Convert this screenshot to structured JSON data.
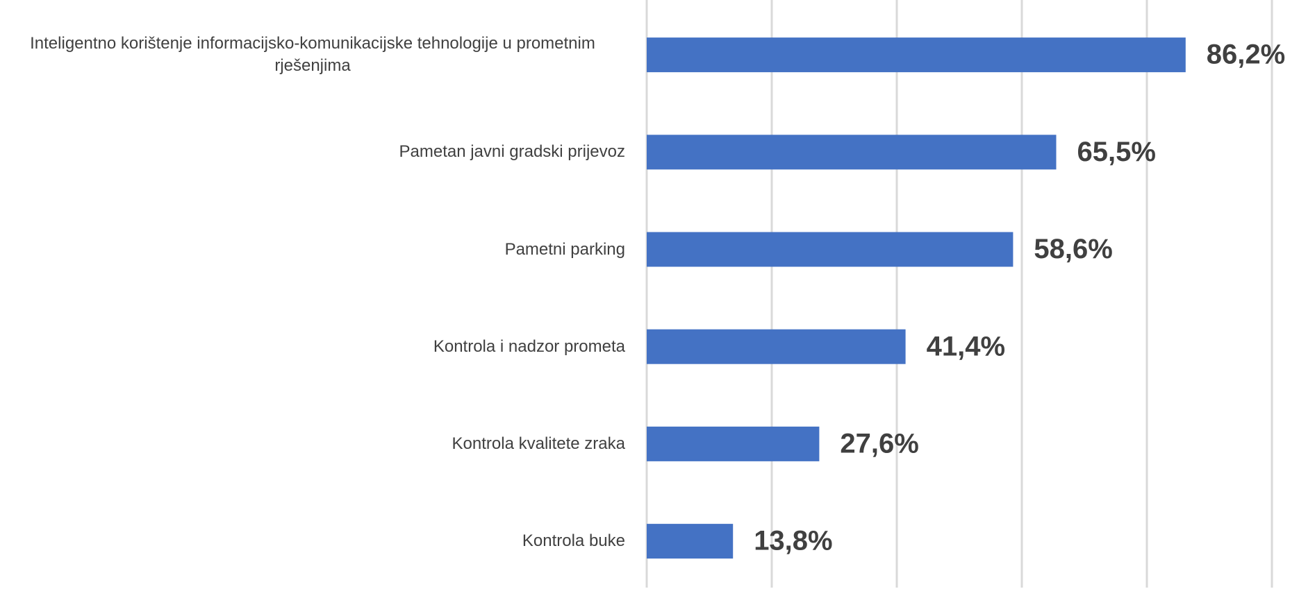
{
  "chart_data": {
    "type": "bar",
    "orientation": "horizontal",
    "categories": [
      "Inteligentno korištenje informacijsko-komunikacijske tehnologije u prometnim rješenjima",
      "Pametan javni gradski prijevoz",
      "Pametni parking",
      "Kontrola i nadzor prometa",
      "Kontrola kvalitete zraka",
      "Kontrola buke"
    ],
    "values": [
      86.2,
      65.5,
      58.6,
      41.4,
      27.6,
      13.8
    ],
    "value_labels": [
      "86,2%",
      "65,5%",
      "58,6%",
      "41,4%",
      "27,6%",
      "13,8%"
    ],
    "color": "#4472c4",
    "xlim": [
      0,
      100
    ],
    "xticks": [
      0,
      20,
      40,
      60,
      80,
      100
    ],
    "grid": true
  }
}
